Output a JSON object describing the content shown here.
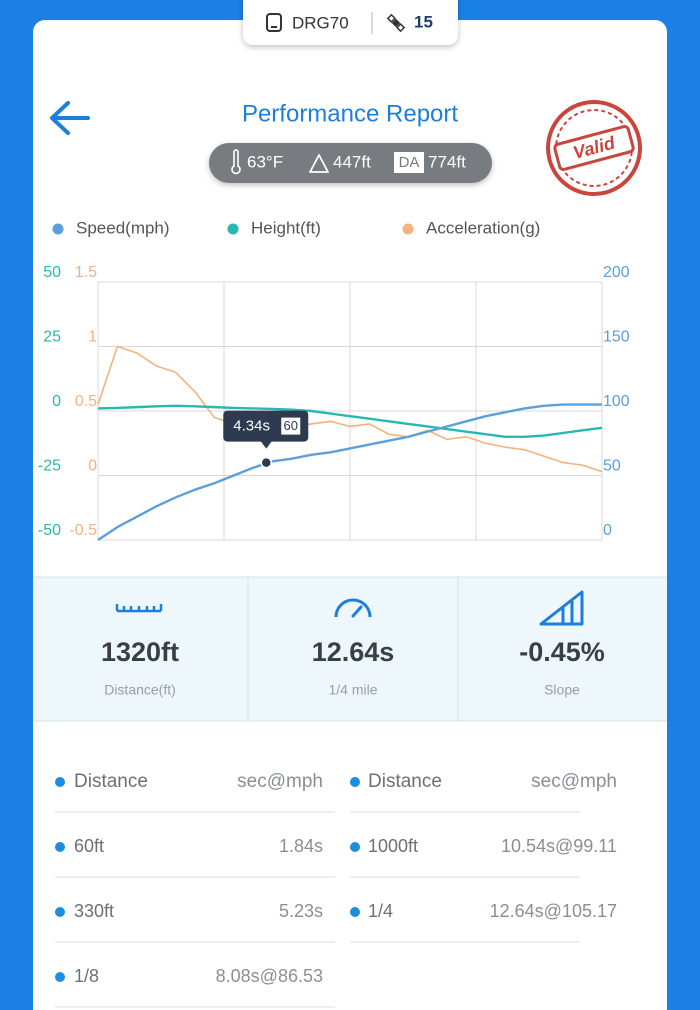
{
  "tab": {
    "device": "DRG70",
    "count": "15"
  },
  "header": {
    "title": "Performance Report",
    "stamp": "Valid"
  },
  "conditions": {
    "temperature": "63°F",
    "altitude": "447ft",
    "da_badge": "DA",
    "density_altitude": "774ft"
  },
  "chart_data": {
    "type": "line",
    "x": [
      0,
      0.5,
      1,
      1.5,
      2,
      2.5,
      3,
      3.5,
      4,
      4.5,
      5,
      5.5,
      6,
      6.5,
      7,
      7.5,
      8,
      8.5,
      9,
      9.5,
      10,
      10.5,
      11,
      11.5,
      12,
      12.5,
      13
    ],
    "xlim": [
      0,
      13
    ],
    "series": [
      {
        "name": "Speed(mph)",
        "color": "#5b9fdc",
        "axis": "y2",
        "values": [
          0,
          10,
          18,
          26,
          33,
          39,
          44,
          50,
          56,
          61,
          63,
          66,
          68,
          71,
          74,
          77,
          80,
          84,
          88,
          92,
          96,
          99,
          102,
          104,
          105,
          105,
          105
        ]
      },
      {
        "name": "Height(ft)",
        "color": "#2ab7b2",
        "axis": "y",
        "values": [
          1,
          1.2,
          1.5,
          1.8,
          2,
          1.8,
          1.5,
          1.2,
          1,
          0.8,
          0.5,
          0,
          -1,
          -2,
          -3,
          -4,
          -5,
          -6,
          -7,
          -8,
          -9,
          -10,
          -10,
          -9.5,
          -8.5,
          -7.5,
          -6.5
        ]
      },
      {
        "name": "Acceleration(g)",
        "color": "#f3b27f",
        "axis": "y3",
        "values": [
          0.55,
          1.0,
          0.95,
          0.85,
          0.8,
          0.65,
          0.45,
          0.4,
          0.45,
          0.4,
          0.38,
          0.4,
          0.42,
          0.38,
          0.4,
          0.32,
          0.3,
          0.35,
          0.28,
          0.3,
          0.25,
          0.22,
          0.2,
          0.15,
          0.1,
          0.08,
          0.03
        ]
      }
    ],
    "ylim": [
      -50,
      50
    ],
    "yticks": [
      -50,
      -25,
      0,
      25,
      50
    ],
    "y2lim": [
      0,
      200
    ],
    "y2ticks": [
      0,
      50,
      100,
      150,
      200
    ],
    "y3lim": [
      -0.5,
      1.5
    ],
    "y3ticks": [
      -0.5,
      0,
      0.5,
      1,
      1.5
    ],
    "grid": true,
    "tooltip": {
      "time": 4.34,
      "time_label": "4.34s",
      "speed": 60
    }
  },
  "stats": [
    {
      "value": "1320ft",
      "label": "Distance(ft)"
    },
    {
      "value": "12.64s",
      "label": "1/4 mile"
    },
    {
      "value": "-0.45%",
      "label": "Slope"
    }
  ],
  "splits": {
    "left_header": [
      "Distance",
      "sec@mph"
    ],
    "right_header": [
      "Distance",
      "sec@mph"
    ],
    "left": [
      [
        "60ft",
        "1.84s"
      ],
      [
        "330ft",
        "5.23s"
      ],
      [
        "1/8",
        "8.08s@86.53"
      ]
    ],
    "right": [
      [
        "1000ft",
        "10.54s@99.11"
      ],
      [
        "1/4",
        "12.64s@105.17"
      ]
    ]
  }
}
